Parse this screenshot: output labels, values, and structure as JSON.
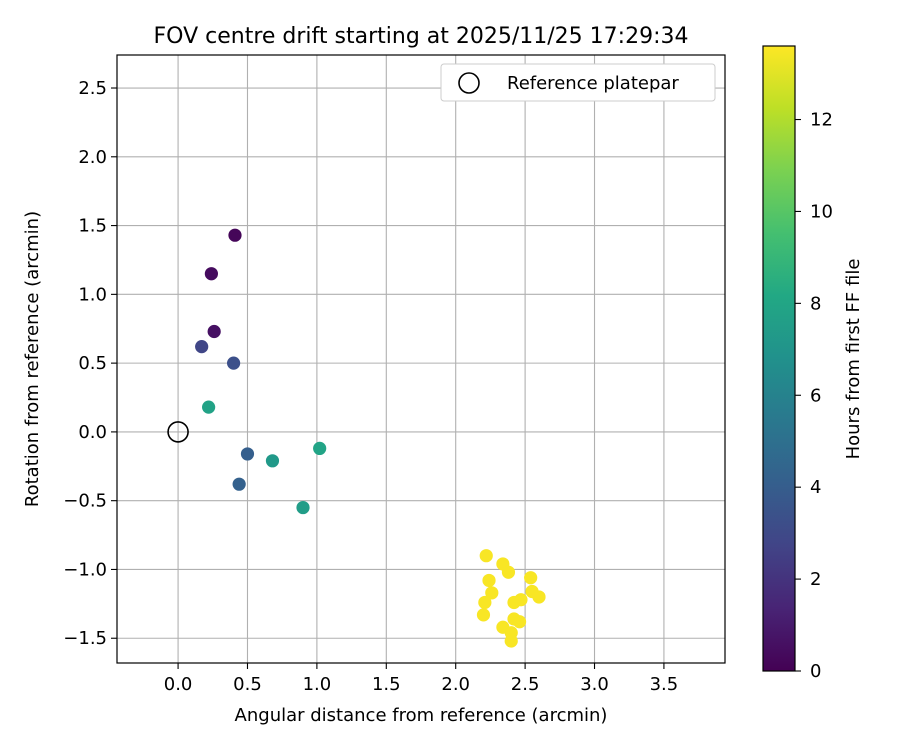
{
  "chart_data": {
    "type": "scatter",
    "title": "FOV centre drift starting at 2025/11/25 17:29:34",
    "xlabel": "Angular distance from reference (arcmin)",
    "ylabel": "Rotation from reference (arcmin)",
    "xlim": [
      -0.44,
      3.94
    ],
    "ylim": [
      -1.68,
      2.74
    ],
    "xticks": [
      "0.0",
      "0.5",
      "1.0",
      "1.5",
      "2.0",
      "2.5",
      "3.0",
      "3.5"
    ],
    "xtick_values": [
      0.0,
      0.5,
      1.0,
      1.5,
      2.0,
      2.5,
      3.0,
      3.5
    ],
    "yticks": [
      "−1.5",
      "−1.0",
      "−0.5",
      "0.0",
      "0.5",
      "1.0",
      "1.5",
      "2.0",
      "2.5"
    ],
    "ytick_values": [
      -1.5,
      -1.0,
      -0.5,
      0.0,
      0.5,
      1.0,
      1.5,
      2.0,
      2.5
    ],
    "grid": true,
    "legend": {
      "position": "upper right",
      "entries": [
        {
          "label": "Reference platepar",
          "marker": "open-circle"
        }
      ]
    },
    "reference": {
      "x": 0.0,
      "y": 0.0
    },
    "colorbar": {
      "label": "Hours from first FF file",
      "range": [
        0,
        13.6
      ],
      "ticks": [
        "0",
        "2",
        "4",
        "6",
        "8",
        "10",
        "12"
      ],
      "tick_values": [
        0,
        2,
        4,
        6,
        8,
        10,
        12
      ],
      "colormap": "viridis"
    },
    "points": [
      {
        "x": 0.41,
        "y": 1.43,
        "hours": 0.2
      },
      {
        "x": 0.24,
        "y": 1.15,
        "hours": 0.4
      },
      {
        "x": 0.26,
        "y": 0.73,
        "hours": 0.6
      },
      {
        "x": 0.17,
        "y": 0.62,
        "hours": 2.8
      },
      {
        "x": 0.4,
        "y": 0.5,
        "hours": 3.3
      },
      {
        "x": 0.22,
        "y": 0.18,
        "hours": 7.8
      },
      {
        "x": 0.5,
        "y": -0.16,
        "hours": 4.1
      },
      {
        "x": 0.44,
        "y": -0.38,
        "hours": 4.2
      },
      {
        "x": 0.68,
        "y": -0.21,
        "hours": 7.3
      },
      {
        "x": 1.02,
        "y": -0.12,
        "hours": 7.9
      },
      {
        "x": 0.9,
        "y": -0.55,
        "hours": 7.5
      },
      {
        "x": 2.22,
        "y": -0.9,
        "hours": 13.5
      },
      {
        "x": 2.34,
        "y": -0.96,
        "hours": 13.5
      },
      {
        "x": 2.38,
        "y": -1.02,
        "hours": 13.5
      },
      {
        "x": 2.24,
        "y": -1.08,
        "hours": 13.5
      },
      {
        "x": 2.54,
        "y": -1.06,
        "hours": 13.5
      },
      {
        "x": 2.26,
        "y": -1.17,
        "hours": 13.5
      },
      {
        "x": 2.55,
        "y": -1.16,
        "hours": 13.5
      },
      {
        "x": 2.6,
        "y": -1.2,
        "hours": 13.5
      },
      {
        "x": 2.47,
        "y": -1.22,
        "hours": 13.5
      },
      {
        "x": 2.42,
        "y": -1.24,
        "hours": 13.5
      },
      {
        "x": 2.21,
        "y": -1.24,
        "hours": 13.5
      },
      {
        "x": 2.2,
        "y": -1.33,
        "hours": 13.5
      },
      {
        "x": 2.42,
        "y": -1.36,
        "hours": 13.5
      },
      {
        "x": 2.46,
        "y": -1.38,
        "hours": 13.5
      },
      {
        "x": 2.34,
        "y": -1.42,
        "hours": 13.5
      },
      {
        "x": 2.4,
        "y": -1.46,
        "hours": 13.5
      },
      {
        "x": 2.4,
        "y": -1.52,
        "hours": 13.5
      }
    ]
  }
}
